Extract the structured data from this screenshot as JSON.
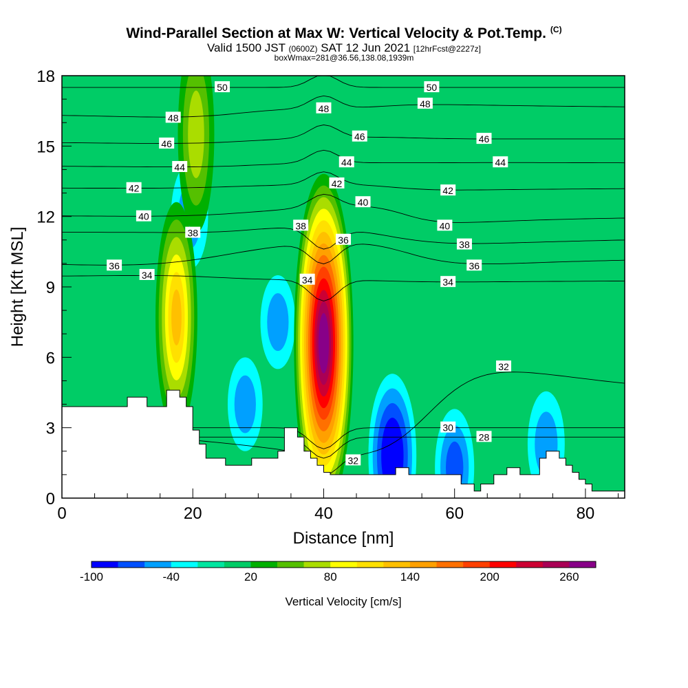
{
  "header": {
    "title": "Wind-Parallel Section at Max W: Vertical Velocity & Pot.Temp.",
    "copyright": "(C)",
    "valid_prefix": "Valid 1500 JST",
    "valid_utc": "(0600Z)",
    "valid_date": "SAT 12 Jun 2021",
    "forecast": "[12hrFcst@2227z]",
    "subtitle3": "boxWmax=281@36.56,138.08,1939m"
  },
  "chart_data": {
    "type": "heatmap",
    "xlabel": "Distance [nm]",
    "ylabel": "Height [Kft MSL]",
    "xlim": [
      0,
      86
    ],
    "ylim": [
      0,
      18
    ],
    "x_ticks": [
      0,
      20,
      40,
      60,
      80
    ],
    "y_ticks": [
      0,
      3,
      6,
      9,
      12,
      15,
      18
    ],
    "colorbar": {
      "title": "Vertical Velocity [cm/s]",
      "labels": [
        -100,
        -40,
        20,
        80,
        140,
        200,
        260
      ],
      "levels": [
        -100,
        -80,
        -60,
        -40,
        -20,
        0,
        20,
        40,
        60,
        80,
        100,
        120,
        140,
        160,
        180,
        200,
        220,
        240,
        260,
        280
      ],
      "colors": [
        "#0000ff",
        "#0050ff",
        "#00a0ff",
        "#00ffff",
        "#00e6a0",
        "#00cc66",
        "#00b000",
        "#55c000",
        "#aadd00",
        "#ffff00",
        "#ffe000",
        "#ffc000",
        "#ffa000",
        "#ff7000",
        "#ff4000",
        "#ff0000",
        "#cc0033",
        "#aa0055",
        "#880088"
      ]
    },
    "background_value": 10,
    "updrafts": [
      {
        "x": 40,
        "y": 6.6,
        "peak": 281
      },
      {
        "x": 17.5,
        "y": 7.7,
        "peak": 120
      },
      {
        "x": 20.5,
        "y": 15.5,
        "peak": 70
      }
    ],
    "downdrafts": [
      {
        "x": 50.5,
        "y": 1.8,
        "peak": -100
      },
      {
        "x": 19.5,
        "y": 12.0,
        "peak": -50
      },
      {
        "x": 60,
        "y": 1.3,
        "peak": -60
      },
      {
        "x": 33,
        "y": 7.5,
        "peak": -40
      },
      {
        "x": 28,
        "y": 4.0,
        "peak": -40
      },
      {
        "x": 74,
        "y": 2.3,
        "peak": -50
      }
    ],
    "terrain_x": [
      0,
      10,
      10,
      13,
      13,
      16,
      16,
      18,
      18,
      19,
      19,
      20,
      20,
      21,
      21,
      22,
      22,
      25,
      25,
      29,
      29,
      33,
      33,
      34,
      34,
      36,
      36,
      37,
      37,
      38,
      38,
      39,
      39,
      40,
      40,
      41,
      41,
      51,
      51,
      53,
      53,
      61,
      61,
      63,
      63,
      64,
      64,
      66,
      66,
      68,
      68,
      70,
      70,
      73,
      73,
      74,
      74,
      76,
      76,
      77,
      77,
      78,
      78,
      79,
      79,
      80,
      80,
      81,
      81,
      86
    ],
    "terrain_y": [
      3.9,
      3.9,
      4.3,
      4.3,
      3.9,
      3.9,
      4.6,
      4.6,
      4.3,
      4.3,
      3.9,
      3.9,
      2.9,
      2.9,
      2.3,
      2.3,
      1.7,
      1.7,
      1.4,
      1.4,
      1.7,
      1.7,
      2.0,
      2.0,
      3.0,
      3.0,
      2.6,
      2.6,
      2.0,
      2.0,
      1.7,
      1.7,
      1.4,
      1.4,
      1.1,
      1.1,
      1.0,
      1.0,
      1.3,
      1.3,
      1.0,
      1.0,
      0.6,
      0.6,
      0.3,
      0.3,
      0.6,
      0.6,
      1.0,
      1.0,
      1.3,
      1.3,
      1.0,
      1.0,
      1.7,
      1.7,
      2.0,
      2.0,
      1.7,
      1.7,
      1.4,
      1.4,
      1.1,
      1.1,
      0.8,
      0.8,
      0.6,
      0.6,
      0.3,
      0.3
    ],
    "theta_contour_labels": [
      {
        "text": "50",
        "x": 24.5,
        "y": 17.5
      },
      {
        "text": "50",
        "x": 56.5,
        "y": 17.5
      },
      {
        "text": "48",
        "x": 17,
        "y": 16.2
      },
      {
        "text": "48",
        "x": 40,
        "y": 16.6
      },
      {
        "text": "48",
        "x": 55.5,
        "y": 16.8
      },
      {
        "text": "46",
        "x": 16,
        "y": 15.1
      },
      {
        "text": "46",
        "x": 45.5,
        "y": 15.4
      },
      {
        "text": "46",
        "x": 64.5,
        "y": 15.3
      },
      {
        "text": "44",
        "x": 18,
        "y": 14.1
      },
      {
        "text": "44",
        "x": 43.5,
        "y": 14.3
      },
      {
        "text": "44",
        "x": 67,
        "y": 14.3
      },
      {
        "text": "42",
        "x": 11,
        "y": 13.2
      },
      {
        "text": "42",
        "x": 42,
        "y": 13.4
      },
      {
        "text": "42",
        "x": 59,
        "y": 13.1
      },
      {
        "text": "40",
        "x": 12.5,
        "y": 12.0
      },
      {
        "text": "40",
        "x": 46,
        "y": 12.6
      },
      {
        "text": "40",
        "x": 58.5,
        "y": 11.6
      },
      {
        "text": "38",
        "x": 20,
        "y": 11.3
      },
      {
        "text": "38",
        "x": 36.5,
        "y": 11.6
      },
      {
        "text": "38",
        "x": 61.5,
        "y": 10.8
      },
      {
        "text": "36",
        "x": 8,
        "y": 9.9
      },
      {
        "text": "36",
        "x": 43,
        "y": 11.0
      },
      {
        "text": "36",
        "x": 63,
        "y": 9.9
      },
      {
        "text": "34",
        "x": 13,
        "y": 9.5
      },
      {
        "text": "34",
        "x": 37.5,
        "y": 9.3
      },
      {
        "text": "34",
        "x": 59,
        "y": 9.2
      },
      {
        "text": "32",
        "x": 44.5,
        "y": 1.6
      },
      {
        "text": "32",
        "x": 67.5,
        "y": 5.6
      },
      {
        "text": "30",
        "x": 59,
        "y": 3.0
      },
      {
        "text": "28",
        "x": 64.5,
        "y": 2.6
      }
    ]
  }
}
